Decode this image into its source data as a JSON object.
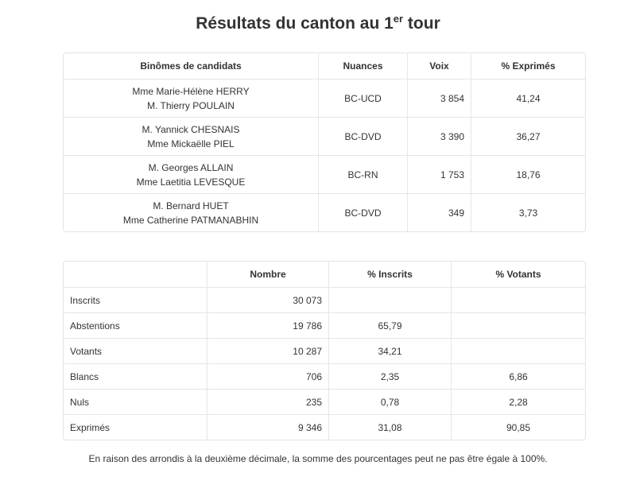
{
  "title": {
    "text": "Résultats du canton au 1",
    "sup": "er",
    "suffix": " tour"
  },
  "candidates_table": {
    "headers": [
      "Binômes de candidats",
      "Nuances",
      "Voix",
      "% Exprimés"
    ],
    "rows": [
      {
        "cand1": "Mme Marie-Hélène HERRY",
        "cand2": "M. Thierry POULAIN",
        "nuance": "BC-UCD",
        "voix": "3 854",
        "pct": "41,24"
      },
      {
        "cand1": "M. Yannick CHESNAIS",
        "cand2": "Mme Mickaëlle PIEL",
        "nuance": "BC-DVD",
        "voix": "3 390",
        "pct": "36,27"
      },
      {
        "cand1": "M. Georges ALLAIN",
        "cand2": "Mme Laetitia LEVESQUE",
        "nuance": "BC-RN",
        "voix": "1 753",
        "pct": "18,76"
      },
      {
        "cand1": "M. Bernard HUET",
        "cand2": "Mme Catherine PATMANABHIN",
        "nuance": "BC-DVD",
        "voix": "349",
        "pct": "3,73"
      }
    ]
  },
  "stats_table": {
    "headers": [
      "",
      "Nombre",
      "% Inscrits",
      "% Votants"
    ],
    "rows": [
      {
        "label": "Inscrits",
        "nombre": "30 073",
        "inscrits": "",
        "votants": ""
      },
      {
        "label": "Abstentions",
        "nombre": "19 786",
        "inscrits": "65,79",
        "votants": ""
      },
      {
        "label": "Votants",
        "nombre": "10 287",
        "inscrits": "34,21",
        "votants": ""
      },
      {
        "label": "Blancs",
        "nombre": "706",
        "inscrits": "2,35",
        "votants": "6,86"
      },
      {
        "label": "Nuls",
        "nombre": "235",
        "inscrits": "0,78",
        "votants": "2,28"
      },
      {
        "label": "Exprimés",
        "nombre": "9 346",
        "inscrits": "31,08",
        "votants": "90,85"
      }
    ]
  },
  "footnote": "En raison des arrondis à la deuxième décimale, la somme des pourcentages peut ne pas être égale à 100%."
}
